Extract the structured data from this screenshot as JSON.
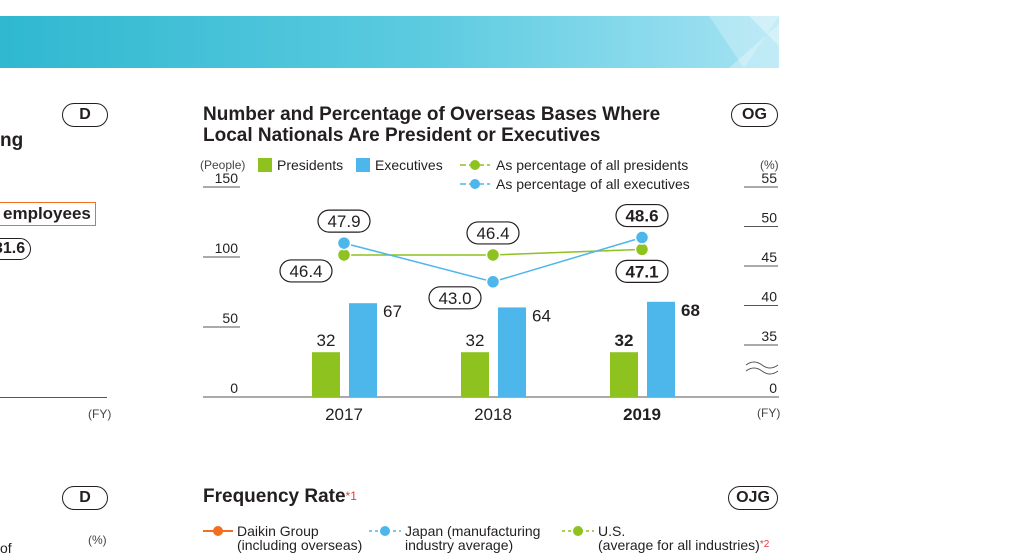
{
  "left_panel": {
    "badge_top": "D",
    "title_fragment": "ng",
    "employees_label": "employees",
    "value_fragment": "31.6",
    "fy_label": "(FY)",
    "badge_bottom": "D",
    "pct_label": "(%)",
    "bottom_fragment": "of"
  },
  "overseas": {
    "title_line1": "Number and Percentage of Overseas Bases Where",
    "title_line2": "Local Nationals Are President or Executives",
    "badge": "OG",
    "left_unit": "(People)",
    "right_unit": "(%)",
    "x_unit": "(FY)",
    "legend": {
      "presidents": "Presidents",
      "executives": "Executives",
      "pct_presidents": "As percentage of all presidents",
      "pct_executives": "As percentage of all executives"
    }
  },
  "chart_data": {
    "type": "bar",
    "title": "Number and Percentage of Overseas Bases Where Local Nationals Are President or Executives",
    "categories": [
      "2017",
      "2018",
      "2019"
    ],
    "series": [
      {
        "name": "Presidents",
        "values": [
          32,
          32,
          32
        ],
        "color": "#8dc21f",
        "axis": "left"
      },
      {
        "name": "Executives",
        "values": [
          67,
          64,
          68
        ],
        "color": "#4db6ea",
        "axis": "left"
      },
      {
        "name": "As percentage of all presidents",
        "values": [
          46.4,
          46.4,
          47.1
        ],
        "color": "#8dc21f",
        "type": "line",
        "axis": "right"
      },
      {
        "name": "As percentage of all executives",
        "values": [
          47.9,
          43.0,
          48.6
        ],
        "color": "#4db6ea",
        "type": "line",
        "axis": "right"
      }
    ],
    "y_left": {
      "ticks": [
        "0",
        "50",
        "100",
        "150"
      ],
      "range": [
        0,
        150
      ]
    },
    "y_right": {
      "ticks": [
        "0",
        "35",
        "40",
        "45",
        "50",
        "55"
      ],
      "range": [
        35,
        55
      ],
      "broken": true
    },
    "bold_last": true
  },
  "frequency": {
    "title": "Frequency Rate",
    "title_note": "*1",
    "badge": "OJG",
    "legend": [
      {
        "label": "Daikin Group",
        "sub": "(including overseas)",
        "color": "#f26f21"
      },
      {
        "label": "Japan (manufacturing",
        "sub": "industry average)",
        "color": "#4db6ea"
      },
      {
        "label": "U.S.",
        "sub": "(average for all industries)",
        "note": "*2",
        "color": "#8dc21f"
      }
    ]
  }
}
